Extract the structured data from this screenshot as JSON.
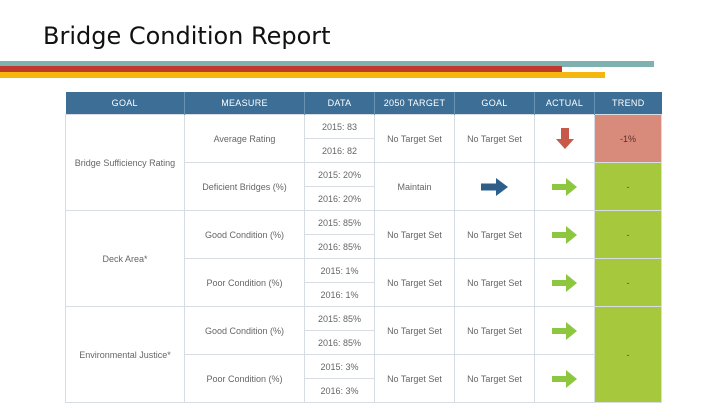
{
  "title": "Bridge Condition Report",
  "colors": {
    "header": "#3c6e96",
    "arrow_down": "#c8584a",
    "arrow_right_blue": "#2e5f8a",
    "arrow_right_green": "#8dc63f",
    "trend_red": "#d98b7b",
    "trend_green": "#a6c83c"
  },
  "table": {
    "headers": [
      "GOAL",
      "MEASURE",
      "DATA",
      "2050 TARGET",
      "GOAL",
      "ACTUAL",
      "TREND"
    ],
    "goals": [
      "Bridge Sufficiency Rating",
      "Deck Area*",
      "Environmental Justice*"
    ],
    "measures": [
      {
        "label": "Average Rating",
        "data": [
          "2015: 83",
          "2016: 82"
        ],
        "target": "No Target Set",
        "goal": "No Target Set",
        "actual_icon": "arrow-down-icon",
        "trend": "-1%"
      },
      {
        "label": "Deficient Bridges (%)",
        "data": [
          "2015: 20%",
          "2016: 20%"
        ],
        "target": "Maintain",
        "goal_icon": "arrow-right-blue-icon",
        "actual_icon": "arrow-right-green-icon",
        "trend": "-"
      },
      {
        "label": "Good Condition (%)",
        "data": [
          "2015: 85%",
          "2016: 85%"
        ],
        "target": "No Target Set",
        "goal": "No Target Set",
        "actual_icon": "arrow-right-green-icon",
        "trend": "-"
      },
      {
        "label": "Poor Condition (%)",
        "data": [
          "2015: 1%",
          "2016: 1%"
        ],
        "target": "No Target Set",
        "goal": "No Target Set",
        "actual_icon": "arrow-right-green-icon",
        "trend": "-"
      },
      {
        "label": "Good Condition (%)",
        "data": [
          "2015: 85%",
          "2016: 85%"
        ],
        "target": "No Target Set",
        "goal": "No Target Set",
        "actual_icon": "arrow-right-green-icon",
        "trend": "-"
      },
      {
        "label": "Poor Condition (%)",
        "data": [
          "2015: 3%",
          "2016: 3%"
        ],
        "target": "No Target Set",
        "goal": "No Target Set",
        "actual_icon": "arrow-right-green-icon",
        "trend": ""
      }
    ]
  }
}
